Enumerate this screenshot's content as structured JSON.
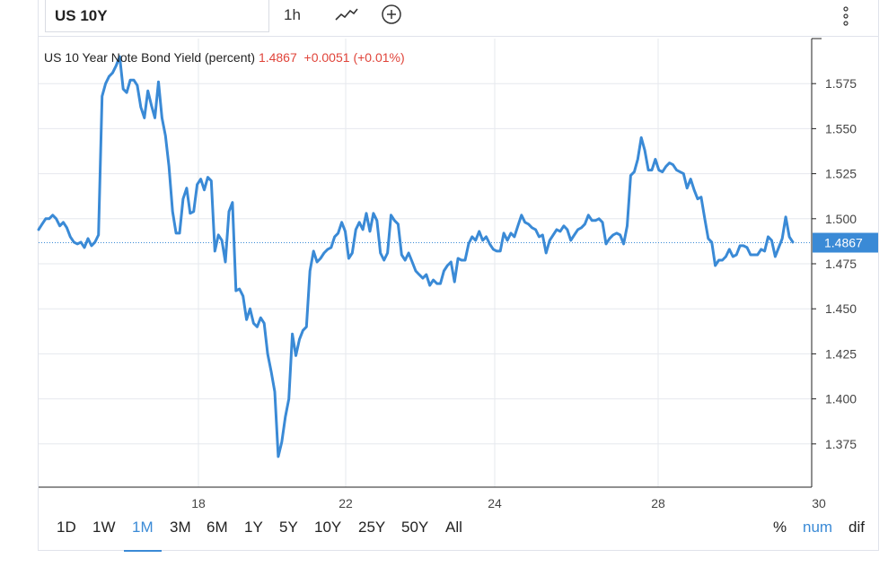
{
  "symbol": "US 10Y",
  "interval": "1h",
  "icons": {
    "chart_style": "line-chart-icon",
    "compare": "plus-circle-icon",
    "menu": "vertical-dots-icon"
  },
  "legend": {
    "title": "US 10 Year Note Bond Yield (percent)",
    "last": "1.4867",
    "change": "+0.0051",
    "change_pct": "(+0.01%)"
  },
  "price_label": "1.4867",
  "ranges": [
    "1D",
    "1W",
    "1M",
    "3M",
    "6M",
    "1Y",
    "5Y",
    "10Y",
    "25Y",
    "50Y",
    "All"
  ],
  "active_range": "1M",
  "modes": [
    "%",
    "num",
    "dif"
  ],
  "active_mode": "num",
  "colors": {
    "line": "#3a8ad6",
    "grid": "#e6e8ee",
    "label_bg": "#3a8ad6",
    "change": "#e0443a"
  },
  "chart_data": {
    "type": "line",
    "x_ticks": [
      "18",
      "22",
      "24",
      "28",
      "30"
    ],
    "y_ticks": [
      "1.575",
      "1.550",
      "1.525",
      "1.500",
      "1.475",
      "1.450",
      "1.425",
      "1.400",
      "1.375"
    ],
    "ylim": [
      1.351,
      1.6
    ],
    "last_value": 1.4867,
    "series": [
      {
        "values": [
          1.494,
          1.497,
          1.5,
          1.5,
          1.502,
          1.5,
          1.496,
          1.498,
          1.495,
          1.49,
          1.487,
          1.486,
          1.487,
          1.484,
          1.489,
          1.485,
          1.487,
          1.491,
          1.568,
          1.575,
          1.579,
          1.581,
          1.585,
          1.59,
          1.572,
          1.57,
          1.577,
          1.577,
          1.574,
          1.562,
          1.556,
          1.571,
          1.563,
          1.556,
          1.576,
          1.556,
          1.546,
          1.529,
          1.504,
          1.492,
          1.492,
          1.511,
          1.517,
          1.503,
          1.504,
          1.519,
          1.522,
          1.516,
          1.523,
          1.521,
          1.482,
          1.491,
          1.488,
          1.476,
          1.504,
          1.509,
          1.46,
          1.461,
          1.457,
          1.444,
          1.45,
          1.442,
          1.44,
          1.445,
          1.442,
          1.425,
          1.415,
          1.404,
          1.368,
          1.376,
          1.39,
          1.4,
          1.436,
          1.424,
          1.433,
          1.438,
          1.44,
          1.471,
          1.482,
          1.476,
          1.478,
          1.481,
          1.483,
          1.484,
          1.49,
          1.492,
          1.498,
          1.493,
          1.478,
          1.481,
          1.494,
          1.498,
          1.494,
          1.503,
          1.493,
          1.503,
          1.499,
          1.481,
          1.477,
          1.481,
          1.502,
          1.499,
          1.497,
          1.48,
          1.477,
          1.481,
          1.476,
          1.471,
          1.469,
          1.467,
          1.469,
          1.463,
          1.466,
          1.464,
          1.464,
          1.471,
          1.474,
          1.476,
          1.465,
          1.478,
          1.477,
          1.477,
          1.486,
          1.49,
          1.488,
          1.493,
          1.488,
          1.49,
          1.486,
          1.483,
          1.482,
          1.482,
          1.492,
          1.488,
          1.492,
          1.49,
          1.496,
          1.502,
          1.498,
          1.497,
          1.495,
          1.494,
          1.49,
          1.491,
          1.481,
          1.488,
          1.491,
          1.494,
          1.493,
          1.496,
          1.494,
          1.488,
          1.491,
          1.494,
          1.495,
          1.497,
          1.502,
          1.499,
          1.499,
          1.5,
          1.498,
          1.486,
          1.489,
          1.491,
          1.492,
          1.491,
          1.486,
          1.496,
          1.524,
          1.526,
          1.533,
          1.545,
          1.538,
          1.527,
          1.527,
          1.533,
          1.527,
          1.526,
          1.529,
          1.531,
          1.53,
          1.527,
          1.526,
          1.525,
          1.517,
          1.522,
          1.516,
          1.511,
          1.512,
          1.5,
          1.489,
          1.487,
          1.474,
          1.477,
          1.477,
          1.479,
          1.483,
          1.479,
          1.48,
          1.485,
          1.485,
          1.484,
          1.48,
          1.48,
          1.48,
          1.483,
          1.482,
          1.49,
          1.488,
          1.479,
          1.484,
          1.489,
          1.501,
          1.49,
          1.487
        ]
      }
    ]
  }
}
